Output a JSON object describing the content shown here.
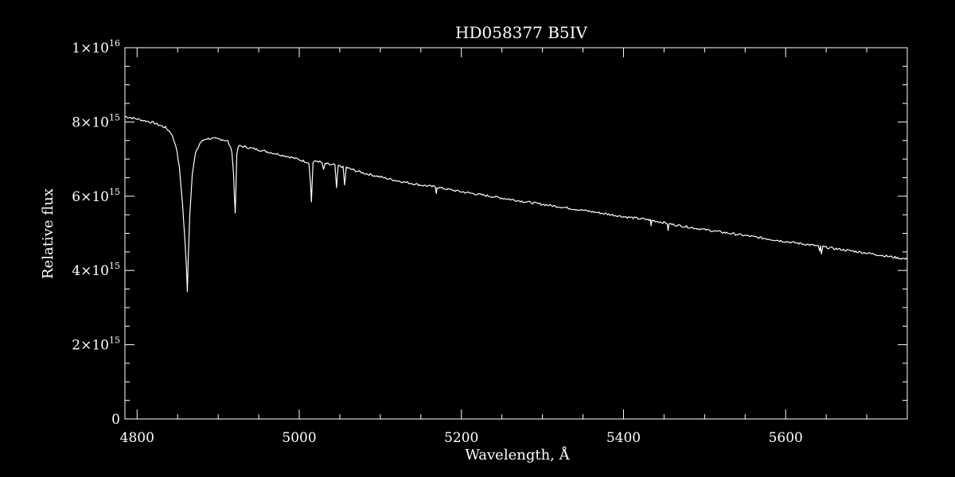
{
  "chart_data": {
    "type": "line",
    "title": "HD058377   B5IV",
    "xlabel": "Wavelength, Å",
    "ylabel": "Relative flux",
    "xlim": [
      4785,
      5750
    ],
    "ylim": [
      0,
      1e+16
    ],
    "x_ticks": [
      {
        "value": 4800,
        "label": "4800"
      },
      {
        "value": 5000,
        "label": "5000"
      },
      {
        "value": 5200,
        "label": "5200"
      },
      {
        "value": 5400,
        "label": "5400"
      },
      {
        "value": 5600,
        "label": "5600"
      }
    ],
    "y_ticks": [
      {
        "value": 0,
        "mantissa": "0",
        "exponent": ""
      },
      {
        "value": 2000000000000000.0,
        "mantissa": "2×10",
        "exponent": "15"
      },
      {
        "value": 4000000000000000.0,
        "mantissa": "4×10",
        "exponent": "15"
      },
      {
        "value": 6000000000000000.0,
        "mantissa": "6×10",
        "exponent": "15"
      },
      {
        "value": 8000000000000000.0,
        "mantissa": "8×10",
        "exponent": "15"
      },
      {
        "value": 1e+16,
        "mantissa": "1×10",
        "exponent": "16"
      }
    ],
    "grid": false,
    "colors": {
      "background": "#000000",
      "foreground": "#ffffff"
    },
    "series": [
      {
        "x": [
          4785,
          4800,
          4820,
          4835,
          4842,
          4848,
          4852,
          4856,
          4859,
          4861,
          4862,
          4863,
          4865,
          4868,
          4872,
          4878,
          4885,
          4895,
          4905,
          4912,
          4917,
          4919,
          4920,
          4921,
          4922,
          4923,
          4925,
          4928,
          4935,
          4950,
          4970,
          4990,
          5005,
          5012,
          5014,
          5015,
          5016,
          5017,
          5019,
          5022,
          5028,
          5030,
          5032,
          5036,
          5040,
          5044,
          5046,
          5048,
          5051,
          5054,
          5056,
          5058,
          5062,
          5080,
          5100,
          5120,
          5150,
          5168,
          5169,
          5170,
          5200,
          5250,
          5300,
          5320,
          5350,
          5400,
          5433,
          5434,
          5435,
          5450,
          5454,
          5455,
          5456,
          5460,
          5500,
          5550,
          5600,
          5640,
          5642,
          5643,
          5644,
          5646,
          5650,
          5700,
          5750
        ],
        "y": [
          8150000000000000.0,
          8080000000000000.0,
          7980000000000000.0,
          7850000000000000.0,
          7700000000000000.0,
          7350000000000000.0,
          6800000000000000.0,
          5800000000000000.0,
          4800000000000000.0,
          4000000000000000.0,
          3450000000000000.0,
          4300000000000000.0,
          5500000000000000.0,
          6600000000000000.0,
          7150000000000000.0,
          7450000000000000.0,
          7550000000000000.0,
          7550000000000000.0,
          7530000000000000.0,
          7480000000000000.0,
          7200000000000000.0,
          6600000000000000.0,
          6000000000000000.0,
          5550000000000000.0,
          6300000000000000.0,
          7100000000000000.0,
          7350000000000000.0,
          7350000000000000.0,
          7320000000000000.0,
          7250000000000000.0,
          7150000000000000.0,
          7050000000000000.0,
          6950000000000000.0,
          6900000000000000.0,
          6300000000000000.0,
          5850000000000000.0,
          6400000000000000.0,
          6900000000000000.0,
          6930000000000000.0,
          6950000000000000.0,
          6900000000000000.0,
          6700000000000000.0,
          6880000000000000.0,
          6860000000000000.0,
          6840000000000000.0,
          6850000000000000.0,
          6200000000000000.0,
          6820000000000000.0,
          6810000000000000.0,
          6780000000000000.0,
          6300000000000000.0,
          6780000000000000.0,
          6740000000000000.0,
          6620000000000000.0,
          6520000000000000.0,
          6420000000000000.0,
          6300000000000000.0,
          6250000000000000.0,
          6100000000000000.0,
          6240000000000000.0,
          6120000000000000.0,
          5950000000000000.0,
          5780000000000000.0,
          5720000000000000.0,
          5620000000000000.0,
          5450000000000000.0,
          5360000000000000.0,
          5200000000000000.0,
          5350000000000000.0,
          5290000000000000.0,
          5270000000000000.0,
          5050000000000000.0,
          5260000000000000.0,
          5240000000000000.0,
          5100000000000000.0,
          4940000000000000.0,
          4780000000000000.0,
          4660000000000000.0,
          4500000000000000.0,
          4650000000000000.0,
          4450000000000000.0,
          4640000000000000.0,
          4620000000000000.0,
          4470000000000000.0,
          4300000000000000.0
        ]
      }
    ]
  }
}
